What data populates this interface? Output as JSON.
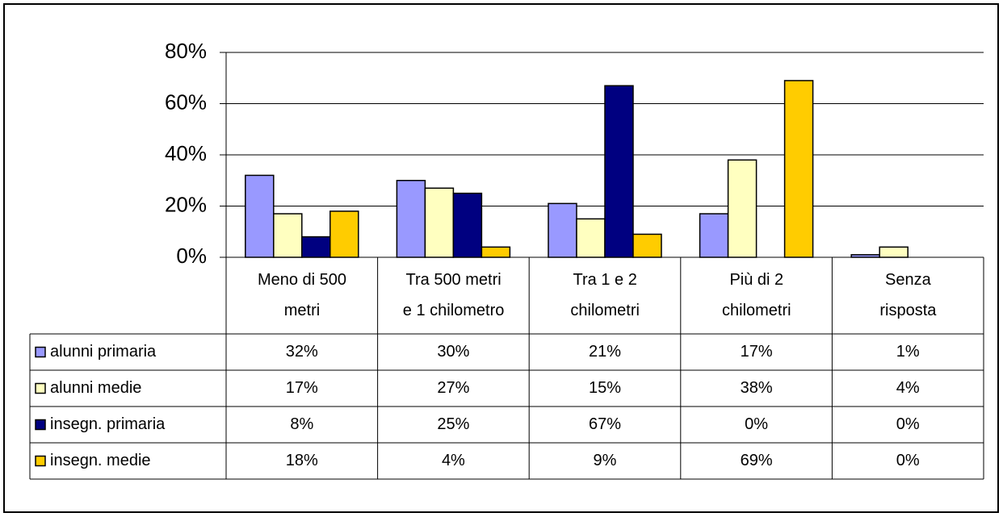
{
  "chart_data": {
    "type": "bar",
    "categories": [
      "Meno di 500\nmetri",
      "Tra 500 metri\ne 1 chilometro",
      "Tra 1 e 2\nchilometri",
      "Più di 2\nchilometri",
      "Senza\nrisposta"
    ],
    "series": [
      {
        "name": "alunni primaria",
        "color": "#9999ff",
        "values": [
          32,
          30,
          21,
          17,
          1
        ],
        "value_labels": [
          "32%",
          "30%",
          "21%",
          "17%",
          "1%"
        ]
      },
      {
        "name": "alunni medie",
        "color": "#ffffc0",
        "values": [
          17,
          27,
          15,
          38,
          4
        ],
        "value_labels": [
          "17%",
          "27%",
          "15%",
          "38%",
          "4%"
        ]
      },
      {
        "name": "insegn. primaria",
        "color": "#000080",
        "values": [
          8,
          25,
          67,
          0,
          0
        ],
        "value_labels": [
          "8%",
          "25%",
          "67%",
          "0%",
          "0%"
        ]
      },
      {
        "name": "insegn. medie",
        "color": "#ffcc00",
        "values": [
          18,
          4,
          9,
          69,
          0
        ],
        "value_labels": [
          "18%",
          "4%",
          "9%",
          "69%",
          "0%"
        ]
      }
    ],
    "ylim": [
      0,
      80
    ],
    "yticks": [
      {
        "value": 0,
        "label": "0%"
      },
      {
        "value": 20,
        "label": "20%"
      },
      {
        "value": 40,
        "label": "40%"
      },
      {
        "value": 60,
        "label": "60%"
      },
      {
        "value": 80,
        "label": "80%"
      }
    ],
    "grid": true,
    "data_table": true
  }
}
